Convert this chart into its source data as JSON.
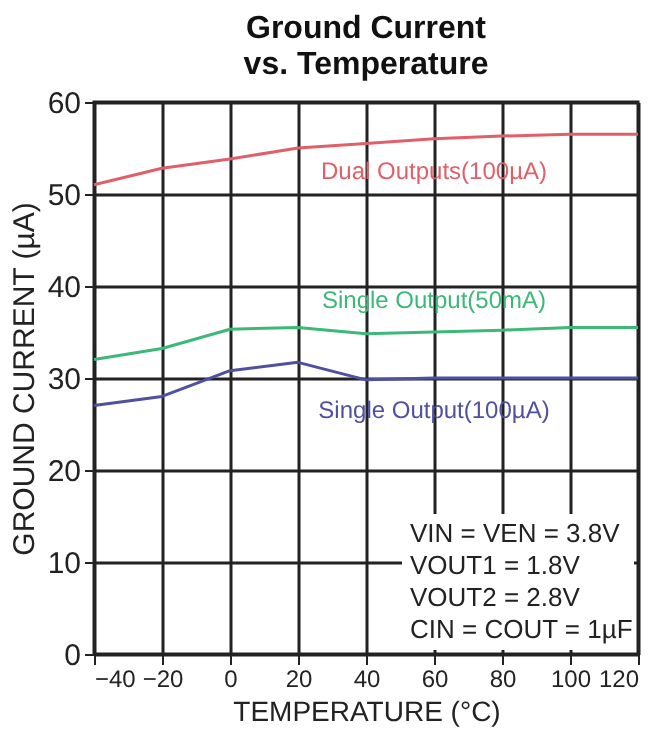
{
  "chart_data": {
    "type": "line",
    "title": "Ground Current\nvs. Temperature",
    "xlabel": "TEMPERATURE (°C)",
    "ylabel": "GROUND CURRENT (µA)",
    "x": [
      -40,
      -20,
      0,
      20,
      40,
      60,
      80,
      100,
      120
    ],
    "series": [
      {
        "name": "Dual Outputs(100µA)",
        "color": "#e0606a",
        "values": [
          51,
          52.8,
          53.8,
          55,
          55.5,
          56,
          56.3,
          56.5,
          56.5
        ]
      },
      {
        "name": "Single Output(50mA)",
        "color": "#3cb878",
        "values": [
          32,
          33.2,
          35.3,
          35.5,
          34.8,
          35,
          35.2,
          35.5,
          35.5
        ]
      },
      {
        "name": "Single Output(100µA)",
        "color": "#5050a0",
        "values": [
          27,
          28,
          30.8,
          31.7,
          29.8,
          30,
          30,
          30,
          30
        ]
      }
    ],
    "xlim": [
      -40,
      120
    ],
    "xticks": [
      -40,
      -20,
      0,
      20,
      40,
      60,
      80,
      100,
      120
    ],
    "ylim": [
      0,
      60
    ],
    "yticks": [
      0,
      10,
      20,
      30,
      40,
      50,
      60
    ],
    "grid": true,
    "legend": false,
    "marker": "none",
    "line_style": "solid",
    "annotations": [
      "VIN = VEN = 3.8V",
      "VOUT1 = 1.8V",
      "VOUT2 = 2.8V",
      "CIN = COUT = 1µF"
    ]
  }
}
